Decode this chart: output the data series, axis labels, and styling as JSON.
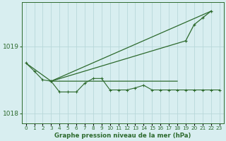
{
  "xlabel_label": "Graphe pression niveau de la mer (hPa)",
  "bg_color": "#d8eef0",
  "grid_color": "#b8d8da",
  "line_color": "#2d6a2d",
  "x_values": [
    0,
    1,
    2,
    3,
    4,
    5,
    6,
    7,
    8,
    9,
    10,
    11,
    12,
    13,
    14,
    15,
    16,
    17,
    18,
    19,
    20,
    21,
    22,
    23
  ],
  "line1_y": [
    1018.75,
    1018.63,
    1018.5,
    1018.48,
    1018.32,
    1018.32,
    1018.32,
    1018.45,
    1018.52,
    1018.52,
    1018.35,
    1018.35,
    1018.35,
    1018.38,
    1018.42,
    1018.35,
    1018.35,
    1018.35,
    1018.35,
    1018.35,
    1018.35,
    1018.35,
    1018.35,
    1018.35
  ],
  "line2_x": [
    0,
    3,
    18
  ],
  "line2_y": [
    1018.75,
    1018.48,
    1018.48
  ],
  "line3_x": [
    3,
    19,
    20,
    21,
    22
  ],
  "line3_y": [
    1018.48,
    1019.08,
    1019.32,
    1019.42,
    1019.52
  ],
  "line4_x": [
    3,
    22
  ],
  "line4_y": [
    1018.48,
    1019.52
  ],
  "ylim": [
    1017.85,
    1019.65
  ],
  "yticks": [
    1018.0,
    1019.0
  ],
  "xticks": [
    0,
    1,
    2,
    3,
    4,
    5,
    6,
    7,
    8,
    9,
    10,
    11,
    12,
    13,
    14,
    15,
    16,
    17,
    18,
    19,
    20,
    21,
    22,
    23
  ]
}
